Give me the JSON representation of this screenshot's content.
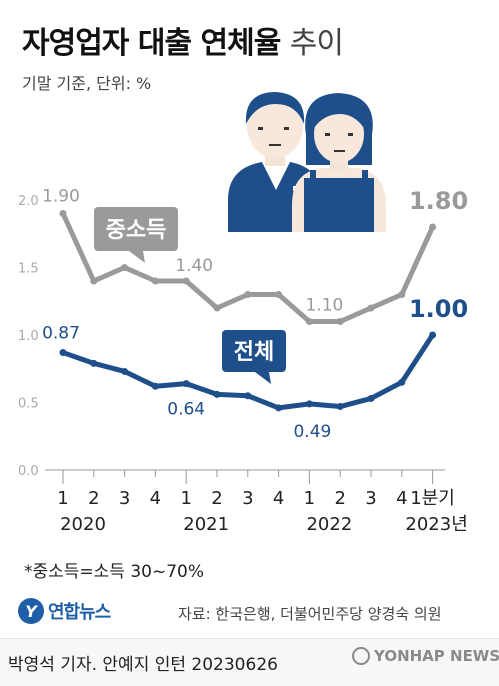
{
  "header": {
    "title_main": "자영업자 대출 연체율",
    "title_light": "추이",
    "subtitle": "기말 기준, 단위: %"
  },
  "chart_data": {
    "type": "line",
    "x_ticks": [
      "1",
      "2",
      "3",
      "4",
      "1",
      "2",
      "3",
      "4",
      "1",
      "2",
      "3",
      "4",
      "1분기"
    ],
    "year_labels": [
      "2020",
      "2021",
      "2022",
      "2023년"
    ],
    "y_ticks": [
      "0.0",
      "0.5",
      "1.0",
      "1.5",
      "2.0"
    ],
    "ylim": [
      0,
      2.0
    ],
    "grid": false,
    "series": [
      {
        "name": "중소득",
        "color": "#9a9a9a",
        "values": [
          1.9,
          1.4,
          1.5,
          1.4,
          1.4,
          1.2,
          1.3,
          1.3,
          1.1,
          1.1,
          1.2,
          1.3,
          1.8
        ],
        "labels": [
          {
            "index": 0,
            "text": "1.90"
          },
          {
            "index": 4,
            "text": "1.40"
          },
          {
            "index": 8,
            "text": "1.10"
          },
          {
            "index": 12,
            "text": "1.80"
          }
        ]
      },
      {
        "name": "전체",
        "color": "#1f4f8b",
        "values": [
          0.87,
          0.79,
          0.73,
          0.62,
          0.64,
          0.56,
          0.55,
          0.46,
          0.49,
          0.47,
          0.53,
          0.65,
          1.0
        ],
        "labels": [
          {
            "index": 0,
            "text": "0.87"
          },
          {
            "index": 4,
            "text": "0.64"
          },
          {
            "index": 8,
            "text": "0.49"
          },
          {
            "index": 12,
            "text": "1.00"
          }
        ]
      }
    ]
  },
  "footnote": "*중소득=소득 30~70%",
  "logo": {
    "mark": "Y",
    "text": "연합뉴스"
  },
  "source": "자료: 한국은행, 더불어민주당 양경숙 의원",
  "credit": "박영석 기자. 안예지 인턴  20230626",
  "watermark": "YONHAP NEWS",
  "colors": {
    "middle_income": "#9a9a9a",
    "total": "#1f4f8b",
    "illustration_blue": "#1f4f8b"
  },
  "icons": [
    "people-illustration"
  ]
}
